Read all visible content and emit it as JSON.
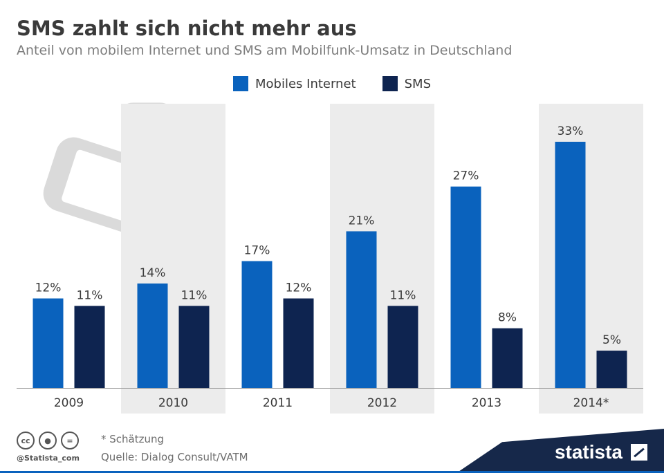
{
  "header": {
    "title": "SMS zahlt sich nicht mehr aus",
    "subtitle": "Anteil von mobilem Internet und SMS am Mobilfunk-Umsatz in Deutschland"
  },
  "colors": {
    "mobile_internet": "#0a62bd",
    "sms": "#0e2450",
    "band": "#ececec",
    "axis": "#9a9a9a"
  },
  "chart_data": {
    "type": "bar",
    "title": "SMS zahlt sich nicht mehr aus",
    "subtitle": "Anteil von mobilem Internet und SMS am Mobilfunk-Umsatz in Deutschland",
    "categories": [
      "2009",
      "2010",
      "2011",
      "2012",
      "2013",
      "2014*"
    ],
    "series": [
      {
        "name": "Mobiles Internet",
        "values": [
          12,
          14,
          17,
          21,
          27,
          33
        ]
      },
      {
        "name": "SMS",
        "values": [
          11,
          11,
          12,
          11,
          8,
          5
        ]
      }
    ],
    "value_suffix": "%",
    "ylim": [
      0,
      40
    ],
    "legend": "top-center",
    "grid": false
  },
  "footer": {
    "note": "* Schätzung",
    "source": "Quelle: Dialog Consult/VATM",
    "handle": "@Statista_com",
    "brand": "statista",
    "cc_icons": [
      "cc-icon",
      "by-icon",
      "nd-icon"
    ]
  }
}
